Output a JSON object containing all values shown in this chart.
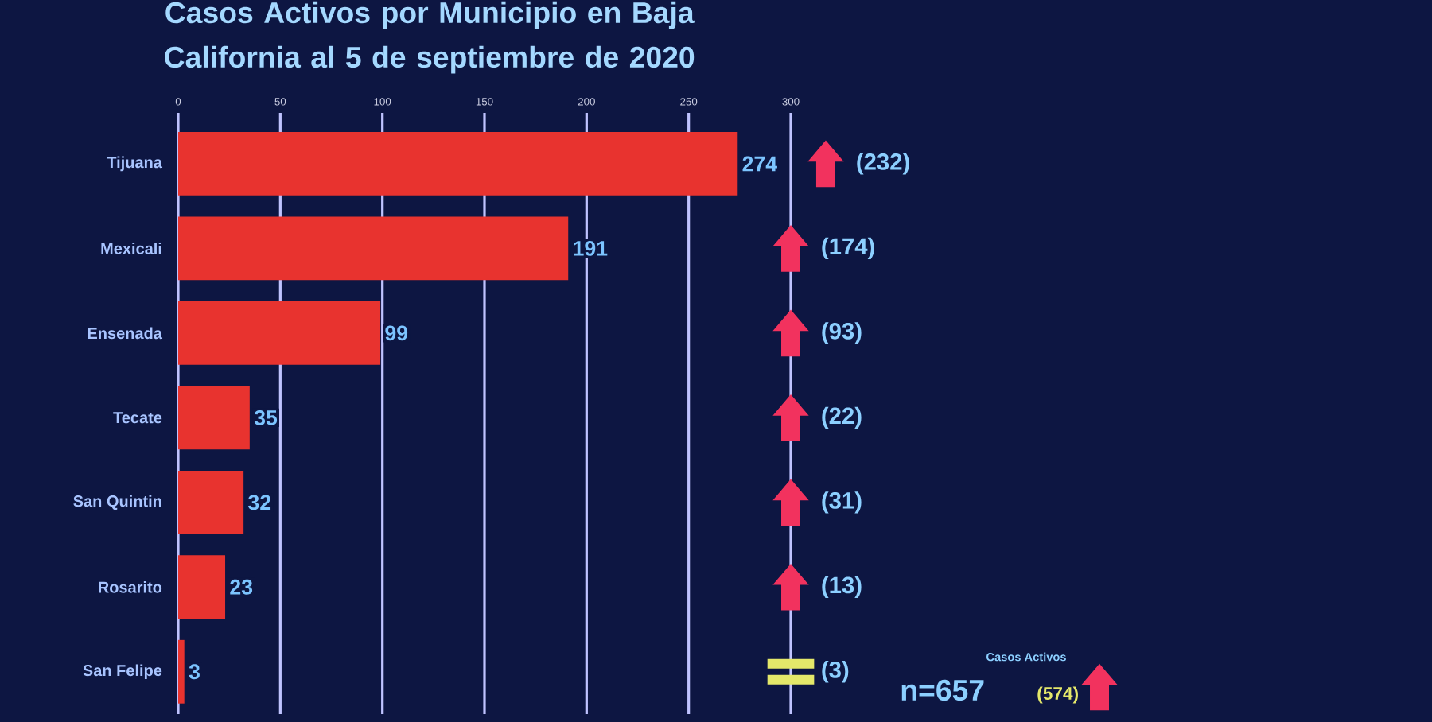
{
  "chart_data": {
    "type": "bar",
    "orientation": "horizontal",
    "title": "Casos Activos por Municipio en Baja California al 5 de septiembre de 2020",
    "categories": [
      "Tijuana",
      "Mexicali",
      "Ensenada",
      "Tecate",
      "San Quintin",
      "Rosarito",
      "San Felipe"
    ],
    "values": [
      274,
      191,
      99,
      35,
      32,
      23,
      3
    ],
    "color": "#e8332f",
    "xlim": [
      0,
      300
    ],
    "xticks": [
      0,
      50,
      100,
      150,
      200,
      250,
      300
    ],
    "grid": "x",
    "data_labels": true,
    "annotations": [
      "(232)",
      "(174)",
      "(93)",
      "(22)",
      "(31)",
      "(13)",
      "(3)",
      "Casos Activos",
      "n=657",
      "(574)"
    ]
  }
}
